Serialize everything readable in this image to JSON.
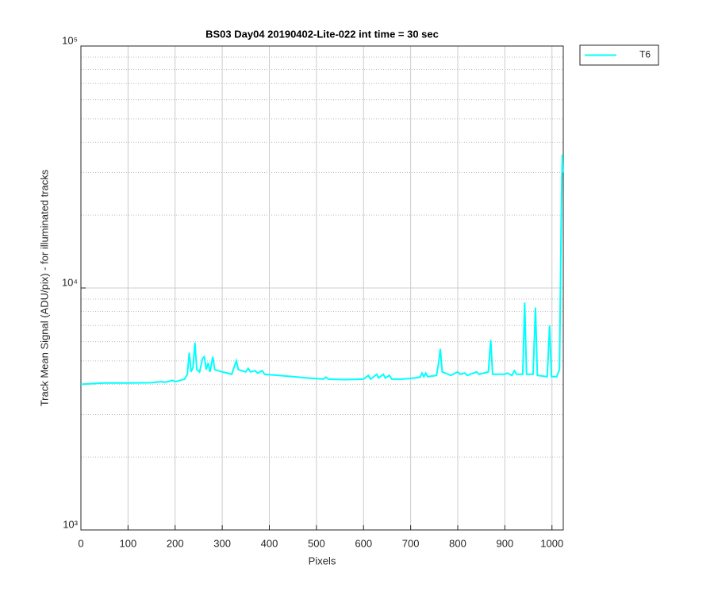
{
  "chart_data": {
    "type": "line",
    "title": "BS03 Day04 20190402-Lite-022 int time = 30 sec",
    "xlabel": "Pixels",
    "ylabel": "Track Mean Signal (ADU/pix) - for illuminated tracks",
    "xlim": [
      0,
      1024
    ],
    "ylim": [
      1000,
      100000
    ],
    "yscale": "log",
    "grid": true,
    "legend": "outside-right",
    "xticks": [
      0,
      100,
      200,
      300,
      400,
      500,
      600,
      700,
      800,
      900,
      1000
    ],
    "yticks": [
      {
        "value": 1000,
        "label": "10³"
      },
      {
        "value": 10000,
        "label": "10⁴"
      },
      {
        "value": 100000,
        "label": "10⁵"
      }
    ],
    "yminorticks": [
      2000,
      3000,
      4000,
      5000,
      6000,
      7000,
      8000,
      9000,
      20000,
      30000,
      40000,
      50000,
      60000,
      70000,
      80000,
      90000
    ],
    "series": [
      {
        "name": "T6",
        "color": "#00ffff",
        "x": [
          0,
          20,
          50,
          100,
          150,
          170,
          180,
          195,
          200,
          220,
          226,
          230,
          234,
          238,
          242,
          246,
          252,
          258,
          262,
          266,
          270,
          274,
          280,
          284,
          300,
          320,
          330,
          334,
          350,
          355,
          360,
          370,
          375,
          385,
          390,
          420,
          450,
          480,
          500,
          515,
          520,
          525,
          560,
          600,
          610,
          615,
          628,
          632,
          642,
          646,
          655,
          660,
          680,
          700,
          720,
          724,
          728,
          732,
          736,
          755,
          760,
          763,
          767,
          780,
          785,
          800,
          805,
          815,
          820,
          840,
          845,
          865,
          870,
          874,
          900,
          905,
          915,
          920,
          925,
          938,
          942,
          946,
          960,
          965,
          969,
          990,
          995,
          999,
          1010,
          1016,
          1020,
          1022,
          1023
        ],
        "values": [
          4000,
          4020,
          4050,
          4050,
          4060,
          4100,
          4080,
          4150,
          4100,
          4200,
          4400,
          5400,
          4500,
          4700,
          5950,
          4600,
          4500,
          5100,
          5200,
          4600,
          4900,
          4500,
          5200,
          4600,
          4500,
          4400,
          5000,
          4600,
          4500,
          4650,
          4500,
          4550,
          4450,
          4550,
          4400,
          4350,
          4300,
          4250,
          4220,
          4200,
          4280,
          4200,
          4180,
          4200,
          4350,
          4200,
          4400,
          4250,
          4400,
          4250,
          4350,
          4200,
          4200,
          4230,
          4280,
          4450,
          4300,
          4450,
          4300,
          4350,
          5000,
          5600,
          4500,
          4400,
          4350,
          4500,
          4400,
          4450,
          4350,
          4500,
          4400,
          4500,
          6100,
          4400,
          4400,
          4450,
          4350,
          4550,
          4400,
          4400,
          8700,
          4400,
          4400,
          8300,
          4350,
          4300,
          7000,
          4300,
          4300,
          4600,
          22000,
          35600,
          30000
        ]
      }
    ]
  }
}
